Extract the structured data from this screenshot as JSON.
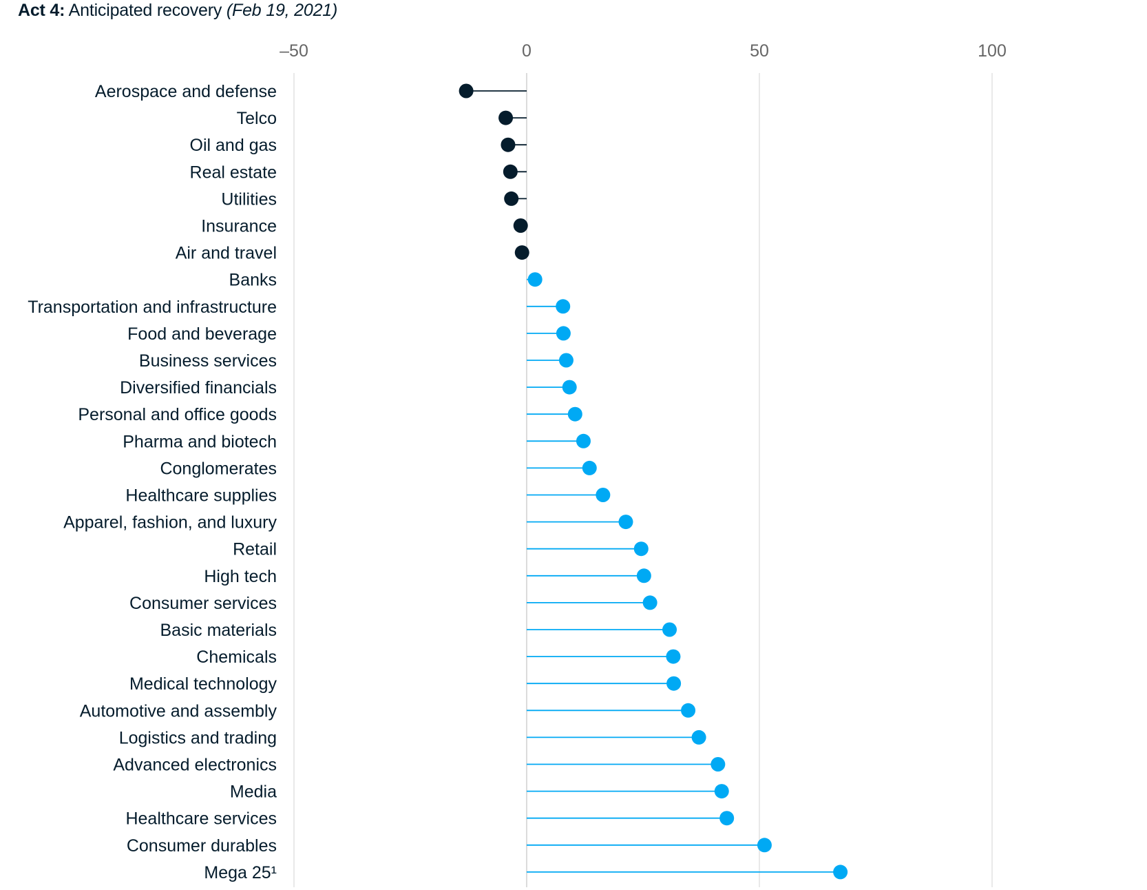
{
  "title": {
    "lead": "Act 4:",
    "text": "Anticipated recovery",
    "date": "(Feb 19, 2021)"
  },
  "colors": {
    "negative": "#051c2c",
    "positive": "#00a9f4",
    "grid": "#dddddd",
    "tick_text": "#666666"
  },
  "chart_data": {
    "type": "lollipop",
    "title": "Act 4: Anticipated recovery (Feb 19, 2021)",
    "xlabel": "",
    "ylabel": "",
    "xlim": [
      -50,
      100
    ],
    "x_ticks": [
      {
        "value": -50,
        "label": "–50"
      },
      {
        "value": 0,
        "label": "0"
      },
      {
        "value": 50,
        "label": "50"
      },
      {
        "value": 100,
        "label": "100"
      }
    ],
    "grid": true,
    "baseline": 0,
    "categories": [
      "Aerospace and defense",
      "Telco",
      "Oil and gas",
      "Real estate",
      "Utilities",
      "Insurance",
      "Air and travel",
      "Banks",
      "Transportation and infrastructure",
      "Food and beverage",
      "Business services",
      "Diversified financials",
      "Personal and office goods",
      "Pharma and biotech",
      "Conglomerates",
      "Healthcare supplies",
      "Apparel, fashion, and luxury",
      "Retail",
      "High tech",
      "Consumer services",
      "Basic materials",
      "Chemicals",
      "Medical technology",
      "Automotive and assembly",
      "Logistics and trading",
      "Advanced electronics",
      "Media",
      "Healthcare services",
      "Consumer durables",
      "Mega 25¹"
    ],
    "values": [
      -13,
      -4.5,
      -4,
      -3.5,
      -3.3,
      -1.3,
      -1,
      1.8,
      7.8,
      7.9,
      8.5,
      9.2,
      10.4,
      12.2,
      13.5,
      16.4,
      21.3,
      24.6,
      25.2,
      26.5,
      30.7,
      31.5,
      31.6,
      34.7,
      37,
      41.1,
      41.9,
      43,
      51.1,
      67.4
    ]
  }
}
